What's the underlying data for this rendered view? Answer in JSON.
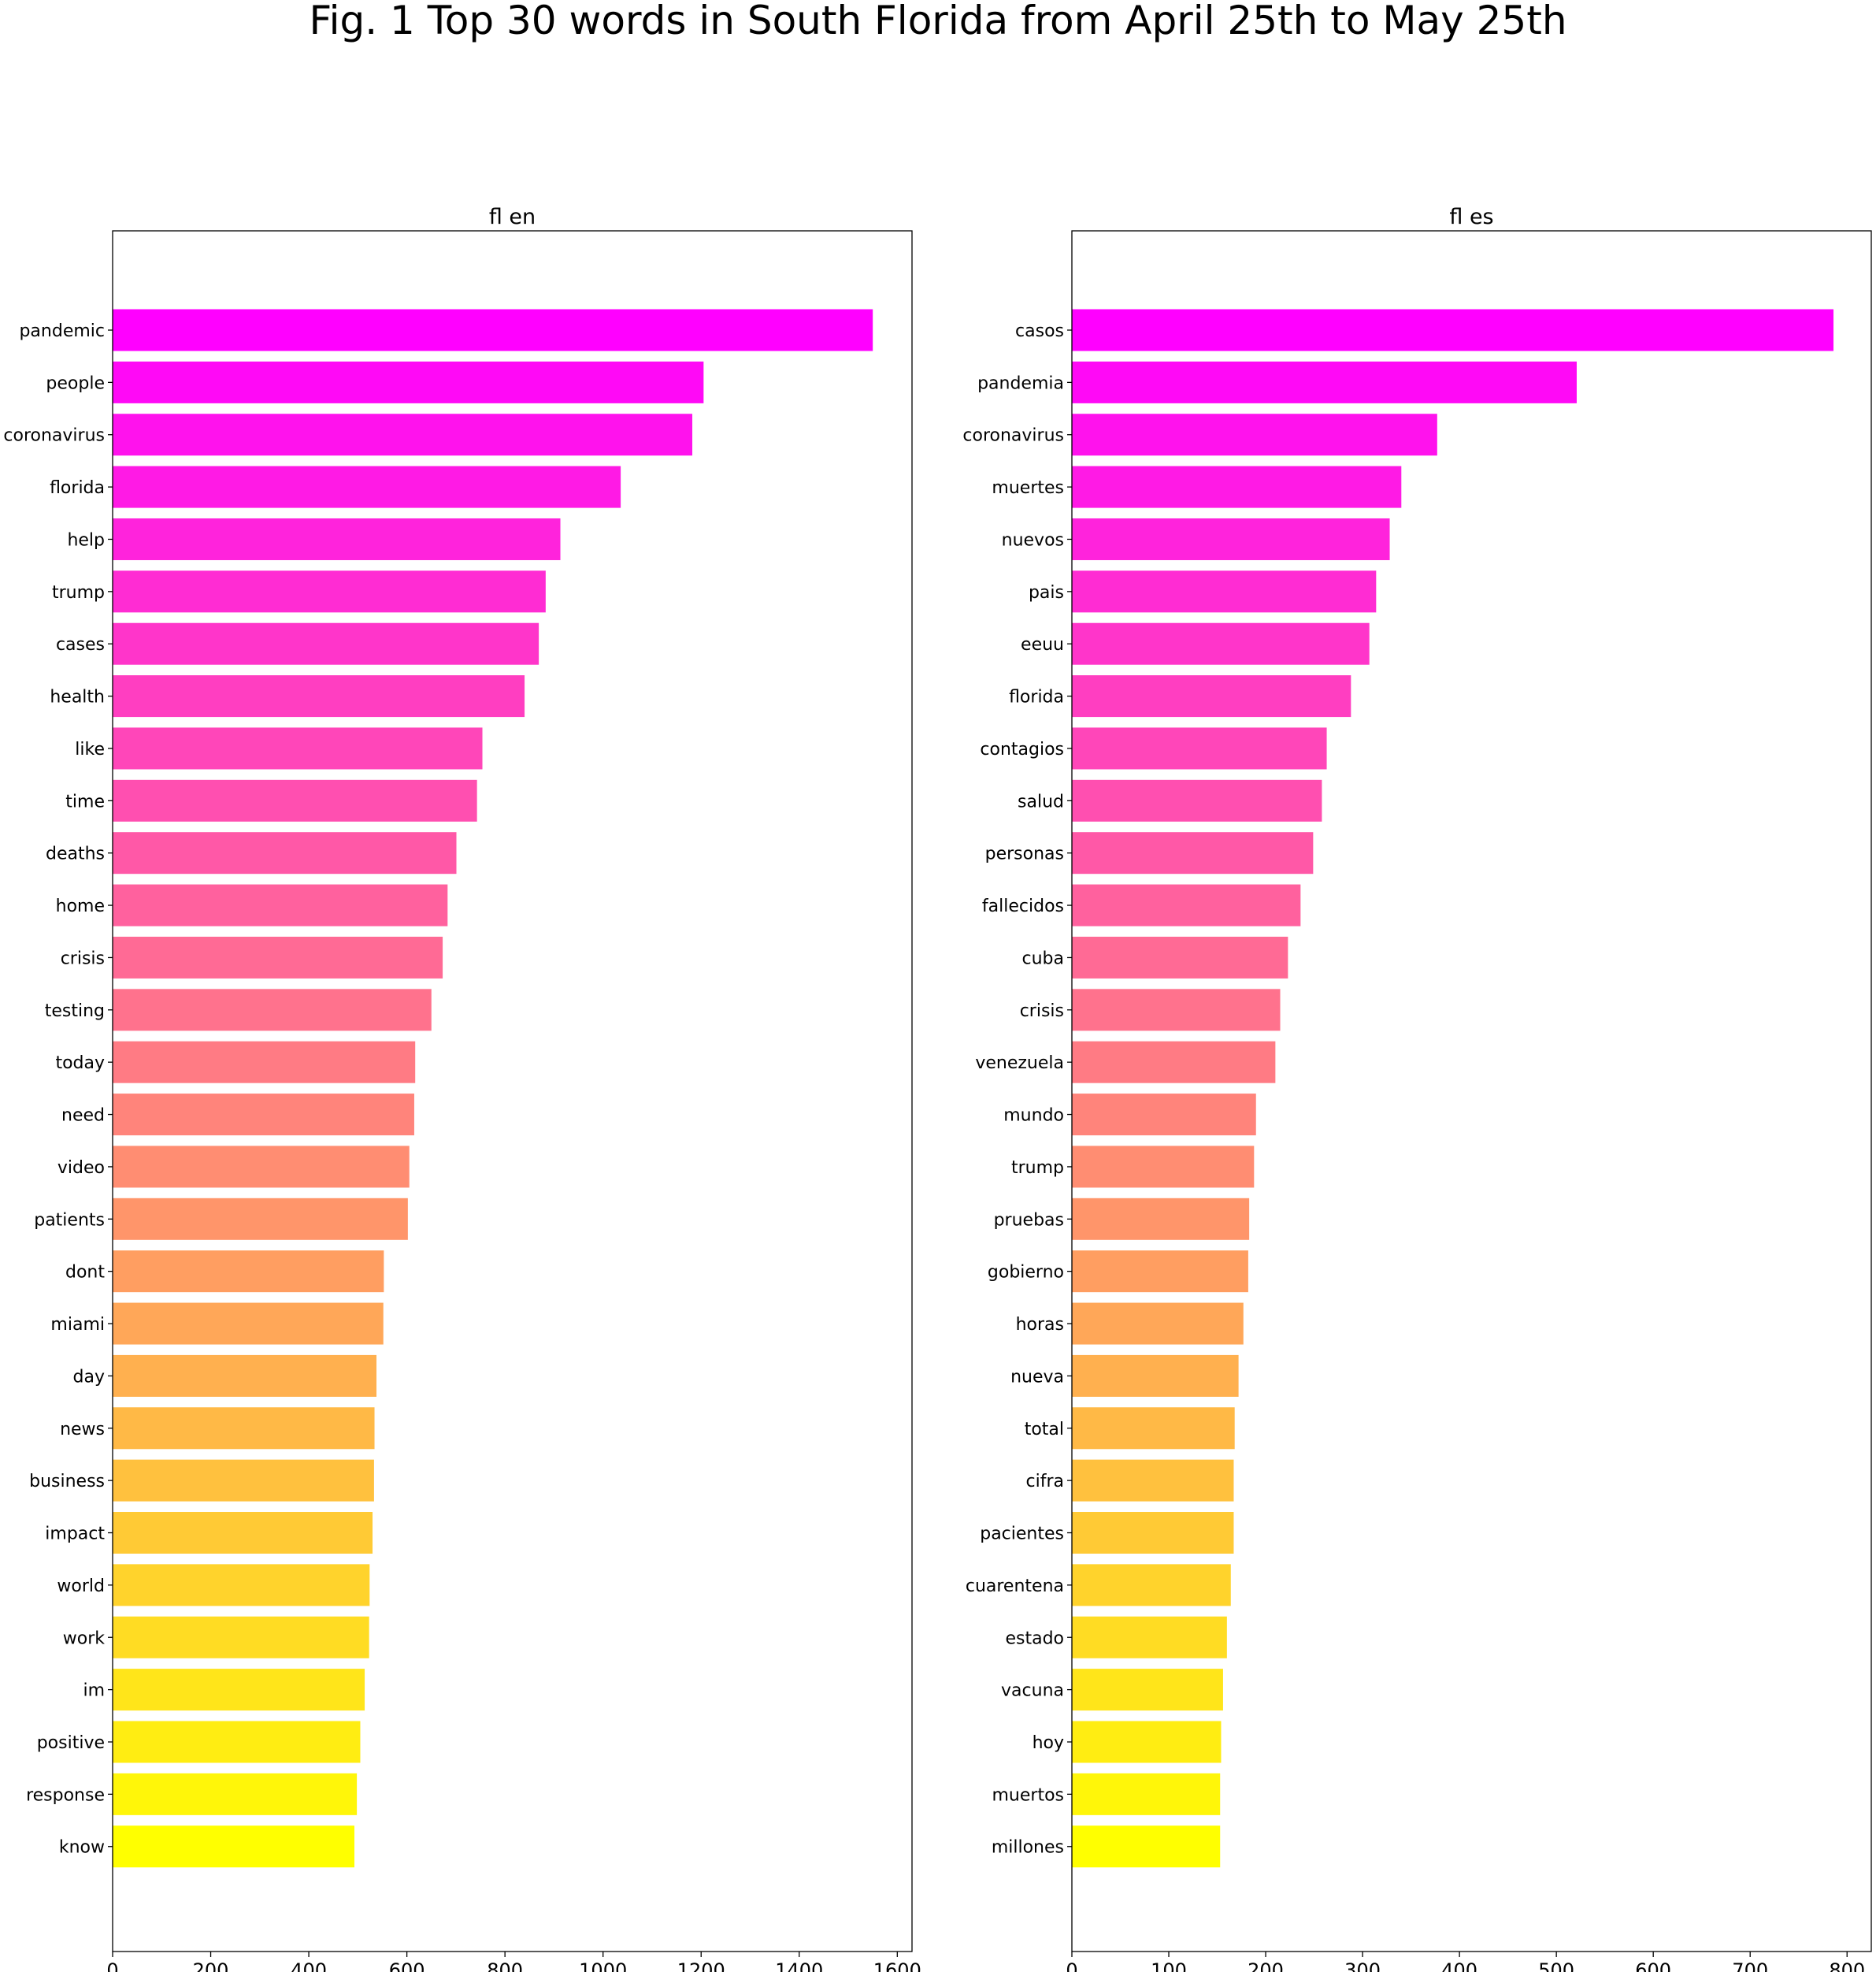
{
  "figure": {
    "title": "Fig. 1 Top 30 words in South Florida from April 25th to May 25th"
  },
  "chart_data": [
    {
      "type": "bar",
      "orientation": "horizontal",
      "title": "fl en",
      "xlabel": "",
      "ylabel": "",
      "xlim": [
        0,
        1630
      ],
      "xticks": [
        0,
        200,
        400,
        600,
        800,
        1000,
        1200,
        1400,
        1600
      ],
      "grid": false,
      "colormap": "spring",
      "categories": [
        "pandemic",
        "people",
        "coronavirus",
        "florida",
        "help",
        "trump",
        "cases",
        "health",
        "like",
        "time",
        "deaths",
        "home",
        "crisis",
        "testing",
        "today",
        "need",
        "video",
        "patients",
        "dont",
        "miami",
        "day",
        "news",
        "business",
        "impact",
        "world",
        "work",
        "im",
        "positive",
        "response",
        "know"
      ],
      "values": [
        1550,
        1205,
        1182,
        1036,
        913,
        883,
        869,
        840,
        754,
        743,
        701,
        683,
        673,
        650,
        617,
        615,
        605,
        602,
        553,
        552,
        538,
        534,
        533,
        530,
        524,
        523,
        514,
        505,
        498,
        493
      ]
    },
    {
      "type": "bar",
      "orientation": "horizontal",
      "title": "fl es",
      "xlabel": "",
      "ylabel": "",
      "xlim": [
        0,
        825
      ],
      "xticks": [
        0,
        100,
        200,
        300,
        400,
        500,
        600,
        700,
        800
      ],
      "grid": false,
      "colormap": "spring",
      "categories": [
        "casos",
        "pandemia",
        "coronavirus",
        "muertes",
        "nuevos",
        "pais",
        "eeuu",
        "florida",
        "contagios",
        "salud",
        "personas",
        "fallecidos",
        "cuba",
        "crisis",
        "venezuela",
        "mundo",
        "trump",
        "pruebas",
        "gobierno",
        "horas",
        "nueva",
        "total",
        "cifra",
        "pacientes",
        "cuarentena",
        "estado",
        "vacuna",
        "hoy",
        "muertos",
        "millones"
      ],
      "values": [
        786,
        521,
        377,
        340,
        328,
        314,
        307,
        288,
        263,
        258,
        249,
        236,
        223,
        215,
        210,
        190,
        188,
        183,
        182,
        177,
        172,
        168,
        167,
        167,
        164,
        160,
        156,
        154,
        153,
        153
      ]
    }
  ]
}
